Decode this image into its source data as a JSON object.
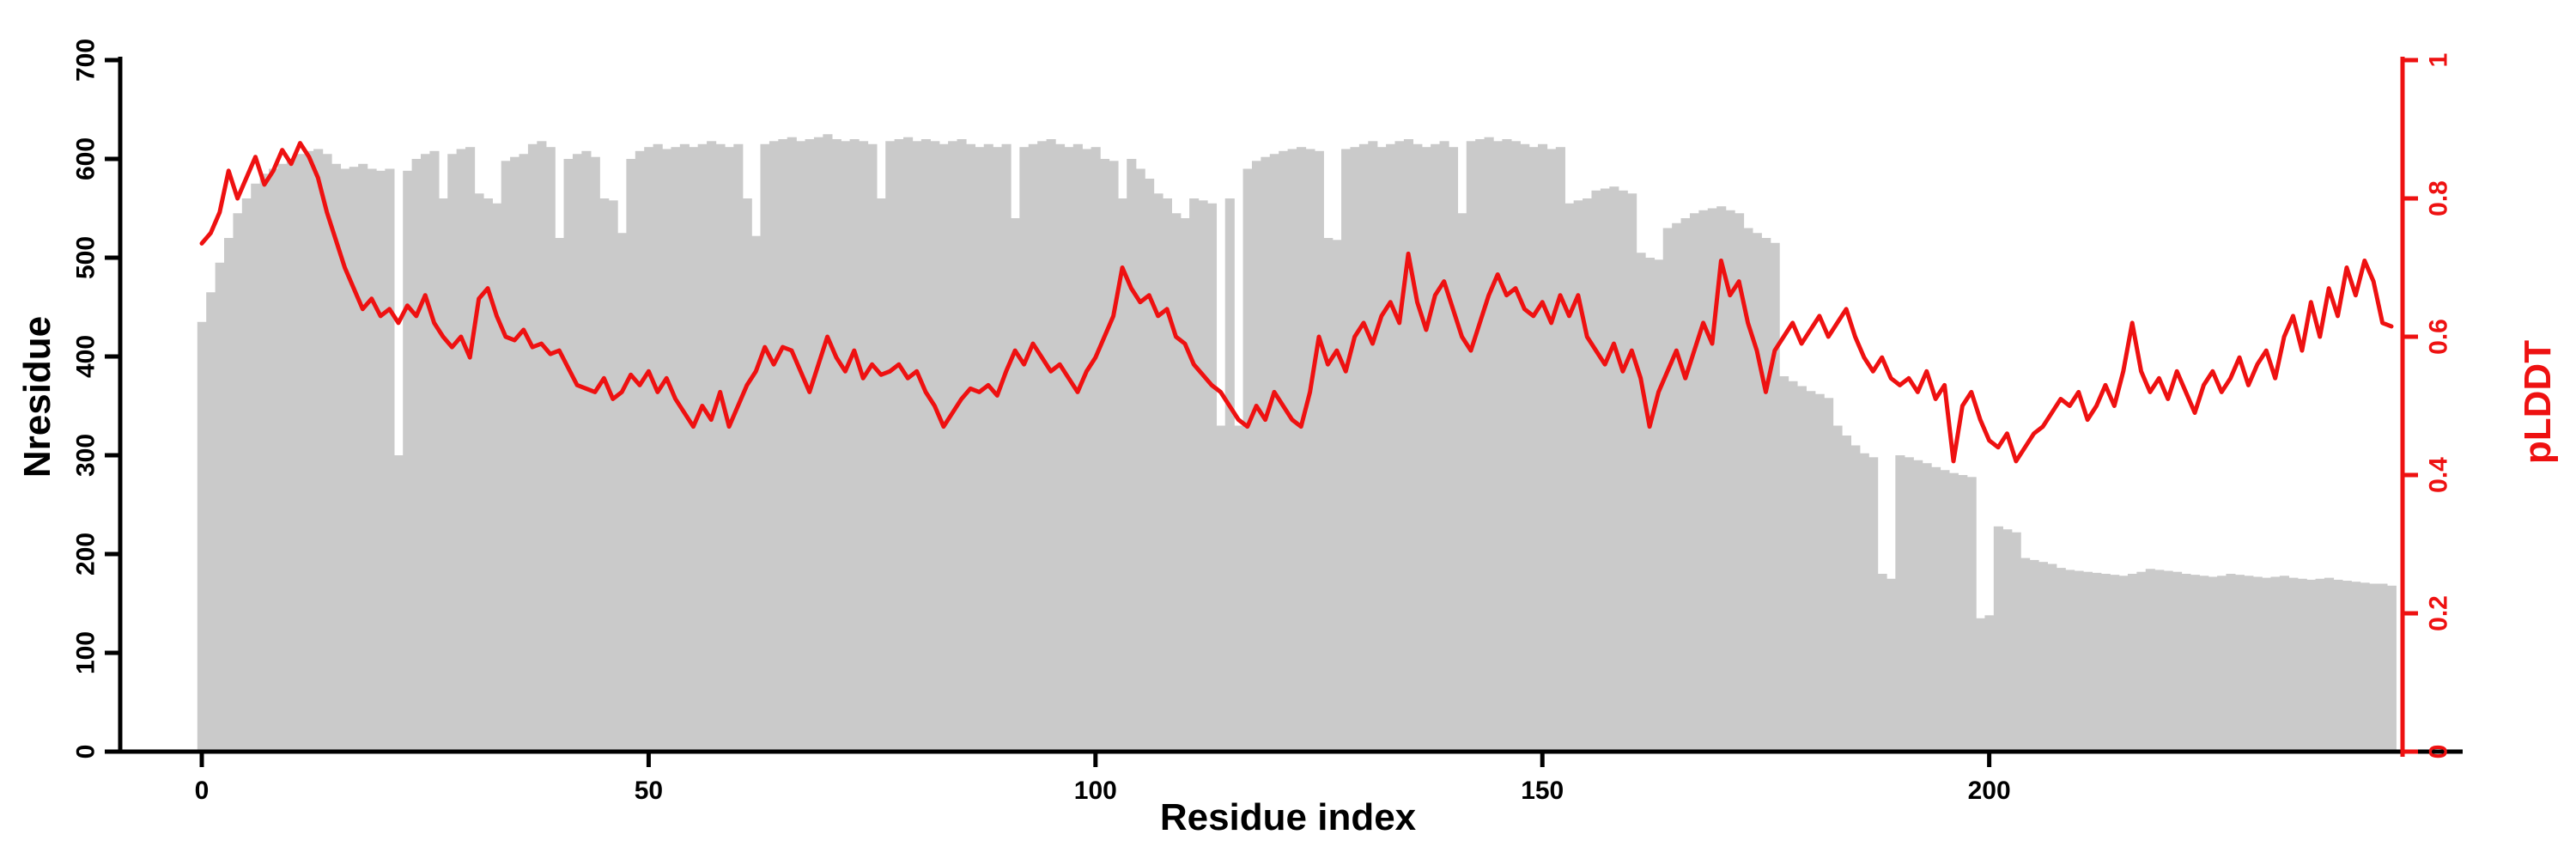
{
  "chart_data": {
    "type": "bar+line dual-axis",
    "title": "",
    "grid": false,
    "legend": "none",
    "colors": {
      "bar": "#cacaca",
      "line": "#ee1111",
      "axis": "#000000"
    },
    "axes": {
      "x": {
        "label": "Residue index",
        "min": 0,
        "max": 245,
        "ticks": [
          0,
          50,
          100,
          150,
          200
        ]
      },
      "left": {
        "label": "Nresidue",
        "min": 0,
        "max": 700,
        "ticks": [
          0,
          100,
          200,
          300,
          400,
          500,
          600,
          700
        ]
      },
      "right": {
        "label": "pLDDT",
        "min": 0,
        "max": 1,
        "ticks": [
          0,
          0.2,
          0.4,
          0.6,
          0.8,
          1
        ]
      }
    },
    "x_is_index": true,
    "series": [
      {
        "name": "Nresidue",
        "type": "bar",
        "axis": "left",
        "color": "#cacaca",
        "values": [
          435,
          465,
          495,
          520,
          545,
          560,
          575,
          585,
          590,
          595,
          600,
          605,
          608,
          610,
          605,
          595,
          590,
          592,
          595,
          590,
          588,
          590,
          300,
          588,
          600,
          605,
          608,
          560,
          605,
          610,
          612,
          565,
          560,
          555,
          598,
          602,
          605,
          615,
          618,
          612,
          520,
          600,
          605,
          608,
          602,
          560,
          558,
          525,
          600,
          608,
          612,
          615,
          610,
          612,
          615,
          612,
          615,
          618,
          615,
          612,
          615,
          560,
          522,
          615,
          618,
          620,
          622,
          618,
          620,
          622,
          625,
          620,
          618,
          620,
          618,
          615,
          560,
          618,
          620,
          622,
          618,
          620,
          618,
          615,
          618,
          620,
          615,
          612,
          615,
          612,
          615,
          540,
          612,
          615,
          618,
          620,
          615,
          612,
          615,
          610,
          612,
          600,
          598,
          560,
          600,
          590,
          580,
          565,
          560,
          545,
          540,
          560,
          558,
          555,
          330,
          560,
          330,
          590,
          598,
          602,
          605,
          608,
          610,
          612,
          610,
          608,
          520,
          518,
          610,
          612,
          615,
          618,
          612,
          615,
          618,
          620,
          615,
          612,
          615,
          618,
          612,
          545,
          618,
          620,
          622,
          618,
          620,
          618,
          615,
          612,
          615,
          610,
          612,
          555,
          558,
          560,
          568,
          570,
          572,
          568,
          565,
          505,
          500,
          498,
          530,
          535,
          540,
          545,
          548,
          550,
          552,
          548,
          545,
          530,
          525,
          520,
          515,
          380,
          375,
          370,
          365,
          362,
          358,
          330,
          320,
          310,
          302,
          298,
          180,
          175,
          300,
          298,
          295,
          292,
          288,
          285,
          282,
          280,
          278,
          135,
          138,
          228,
          225,
          222,
          196,
          194,
          192,
          190,
          186,
          184,
          183,
          182,
          181,
          180,
          179,
          178,
          180,
          182,
          185,
          184,
          183,
          182,
          180,
          179,
          178,
          177,
          178,
          180,
          179,
          178,
          177,
          176,
          177,
          178,
          176,
          175,
          174,
          175,
          176,
          174,
          173,
          172,
          171,
          170,
          170,
          168
        ]
      },
      {
        "name": "pLDDT",
        "type": "line",
        "axis": "right",
        "color": "#ee1111",
        "values": [
          0.735,
          0.75,
          0.78,
          0.84,
          0.8,
          0.83,
          0.86,
          0.82,
          0.84,
          0.87,
          0.85,
          0.88,
          0.86,
          0.83,
          0.78,
          0.74,
          0.7,
          0.67,
          0.64,
          0.655,
          0.63,
          0.64,
          0.62,
          0.645,
          0.63,
          0.66,
          0.62,
          0.6,
          0.585,
          0.6,
          0.57,
          0.655,
          0.67,
          0.63,
          0.6,
          0.595,
          0.61,
          0.585,
          0.59,
          0.575,
          0.58,
          0.555,
          0.53,
          0.525,
          0.52,
          0.54,
          0.51,
          0.52,
          0.545,
          0.53,
          0.55,
          0.52,
          0.54,
          0.51,
          0.49,
          0.47,
          0.5,
          0.48,
          0.52,
          0.47,
          0.5,
          0.53,
          0.55,
          0.585,
          0.56,
          0.585,
          0.58,
          0.55,
          0.52,
          0.56,
          0.6,
          0.57,
          0.55,
          0.58,
          0.54,
          0.56,
          0.545,
          0.55,
          0.56,
          0.54,
          0.55,
          0.52,
          0.5,
          0.47,
          0.49,
          0.51,
          0.525,
          0.52,
          0.53,
          0.515,
          0.55,
          0.58,
          0.56,
          0.59,
          0.57,
          0.55,
          0.56,
          0.54,
          0.52,
          0.55,
          0.57,
          0.6,
          0.63,
          0.7,
          0.67,
          0.65,
          0.66,
          0.63,
          0.64,
          0.6,
          0.59,
          0.56,
          0.545,
          0.53,
          0.52,
          0.5,
          0.48,
          0.47,
          0.5,
          0.48,
          0.52,
          0.5,
          0.48,
          0.47,
          0.52,
          0.6,
          0.56,
          0.58,
          0.55,
          0.6,
          0.62,
          0.59,
          0.63,
          0.65,
          0.62,
          0.72,
          0.65,
          0.61,
          0.66,
          0.68,
          0.64,
          0.6,
          0.58,
          0.62,
          0.66,
          0.69,
          0.66,
          0.67,
          0.64,
          0.63,
          0.65,
          0.62,
          0.66,
          0.63,
          0.66,
          0.6,
          0.58,
          0.56,
          0.59,
          0.55,
          0.58,
          0.54,
          0.47,
          0.52,
          0.55,
          0.58,
          0.54,
          0.58,
          0.62,
          0.59,
          0.71,
          0.66,
          0.68,
          0.62,
          0.58,
          0.52,
          0.58,
          0.6,
          0.62,
          0.59,
          0.61,
          0.63,
          0.6,
          0.62,
          0.64,
          0.6,
          0.57,
          0.55,
          0.57,
          0.54,
          0.53,
          0.54,
          0.52,
          0.55,
          0.51,
          0.53,
          0.42,
          0.5,
          0.52,
          0.48,
          0.45,
          0.44,
          0.46,
          0.42,
          0.44,
          0.46,
          0.47,
          0.49,
          0.51,
          0.5,
          0.52,
          0.48,
          0.5,
          0.53,
          0.5,
          0.55,
          0.62,
          0.55,
          0.52,
          0.54,
          0.51,
          0.55,
          0.52,
          0.49,
          0.53,
          0.55,
          0.52,
          0.54,
          0.57,
          0.53,
          0.56,
          0.58,
          0.54,
          0.6,
          0.63,
          0.58,
          0.65,
          0.6,
          0.67,
          0.63,
          0.7,
          0.66,
          0.71,
          0.68,
          0.62,
          0.615
        ]
      }
    ]
  }
}
